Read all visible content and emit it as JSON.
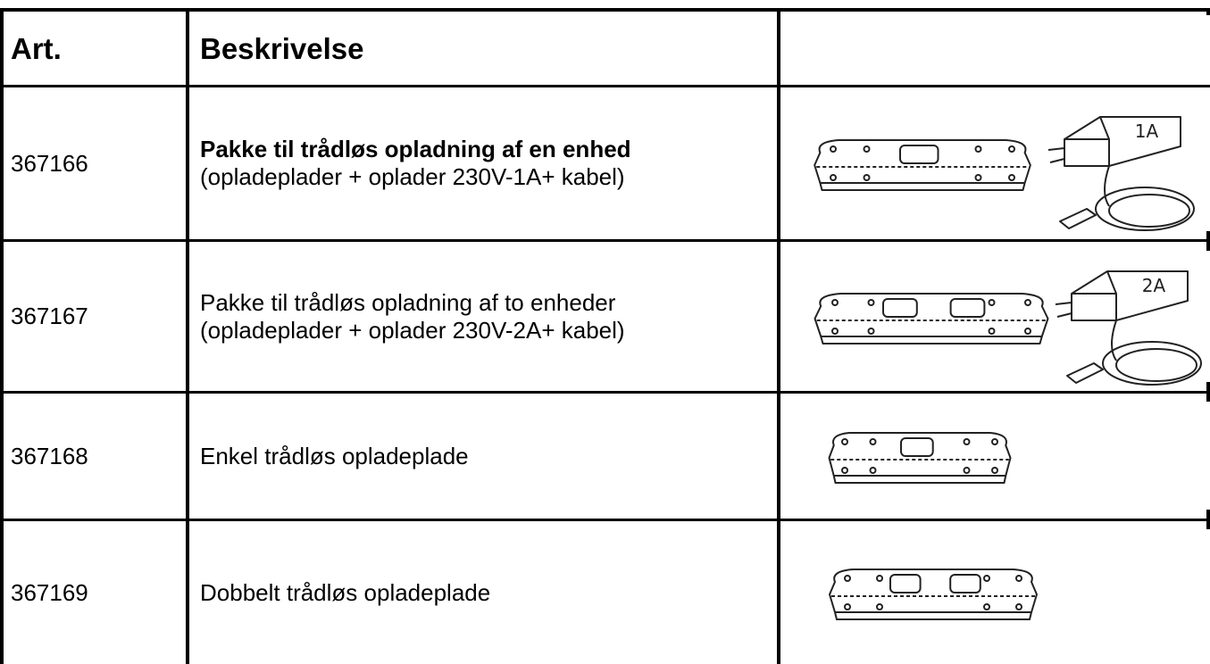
{
  "table": {
    "header": [
      "Art.",
      "Beskrivelse"
    ],
    "rows": [
      {
        "art": "367166",
        "lines": [
          "Pakke til trådløs opladning af en enhed",
          "(opladeplader + oplader 230V-1A+ kabel)"
        ],
        "charger_label": "1A"
      },
      {
        "art": "367167",
        "lines": [
          "Pakke til trådløs opladning af to enheder",
          "(opladeplader + oplader 230V-2A+ kabel)"
        ],
        "charger_label": "2A"
      },
      {
        "art": "367168",
        "lines": [
          "Enkel trådløs opladeplade"
        ]
      },
      {
        "art": "367169",
        "lines": [
          "Dobbelt trådløs opladeplade"
        ]
      }
    ]
  }
}
